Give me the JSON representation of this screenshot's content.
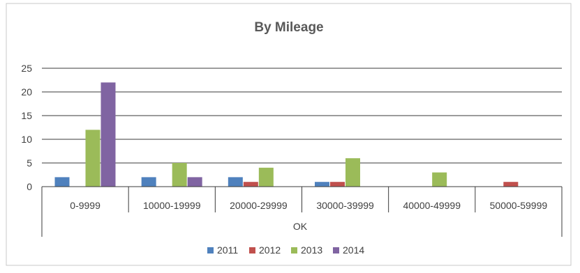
{
  "chart_data": {
    "type": "bar",
    "title": "By Mileage",
    "categories": [
      "0-9999",
      "10000-19999",
      "20000-29999",
      "30000-39999",
      "40000-49999",
      "50000-59999"
    ],
    "group_label": "OK",
    "series": [
      {
        "name": "2011",
        "color": "#4f81bd",
        "values": [
          2,
          2,
          2,
          1,
          0,
          0
        ]
      },
      {
        "name": "2012",
        "color": "#c0504d",
        "values": [
          0,
          0,
          1,
          1,
          0,
          1
        ]
      },
      {
        "name": "2013",
        "color": "#9bbb59",
        "values": [
          12,
          5,
          4,
          6,
          3,
          0
        ]
      },
      {
        "name": "2014",
        "color": "#8064a2",
        "values": [
          22,
          2,
          0,
          0,
          0,
          0
        ]
      }
    ],
    "ylim": [
      0,
      25
    ],
    "yticks": [
      0,
      5,
      10,
      15,
      20,
      25
    ],
    "grid": true,
    "legend_position": "bottom"
  }
}
